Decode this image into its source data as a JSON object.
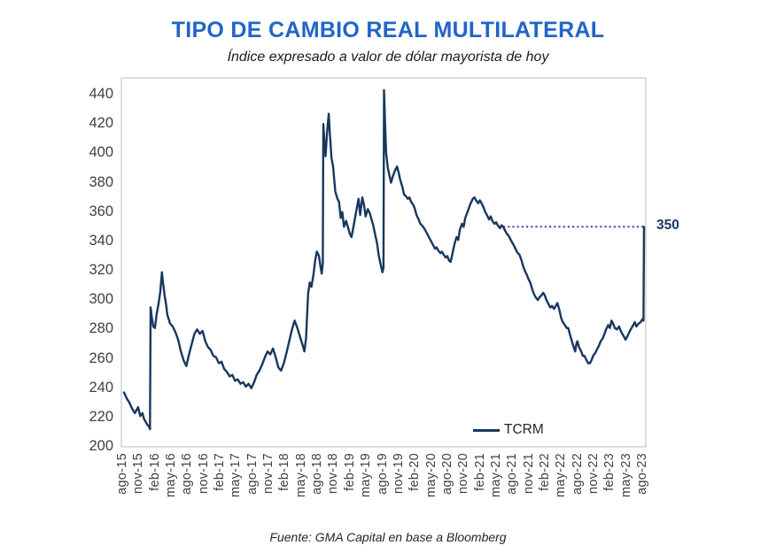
{
  "header": {
    "title": "TIPO DE CAMBIO REAL MULTILATERAL",
    "subtitle": "Índice expresado a valor de dólar mayorista de hoy"
  },
  "footer": {
    "source": "Fuente: GMA Capital en base a Bloomberg"
  },
  "colors": {
    "title": "#2065C9",
    "series_line": "#17375E",
    "reference_dotted": "#7030A0",
    "annotation_text": "#17375E",
    "axis_text": "#404040",
    "plot_border": "#C9C9C9",
    "background": "#FFFFFF"
  },
  "chart_data": {
    "type": "line",
    "title": "TIPO DE CAMBIO REAL MULTILATERAL",
    "subtitle": "Índice expresado a valor de dólar mayorista de hoy",
    "xlabel": "",
    "ylabel": "",
    "ylim": [
      200,
      450
    ],
    "y_ticks": [
      200,
      220,
      240,
      260,
      280,
      300,
      320,
      340,
      360,
      380,
      400,
      420,
      440
    ],
    "x_tick_labels": [
      "ago-15",
      "nov-15",
      "feb-16",
      "may-16",
      "ago-16",
      "nov-16",
      "feb-17",
      "may-17",
      "ago-17",
      "nov-17",
      "feb-18",
      "may-18",
      "ago-18",
      "nov-18",
      "feb-19",
      "may-19",
      "ago-19",
      "nov-19",
      "feb-20",
      "may-20",
      "ago-20",
      "nov-20",
      "feb-21",
      "may-21",
      "ago-21",
      "nov-21",
      "feb-22",
      "may-22",
      "ago-22",
      "nov-22",
      "feb-23",
      "may-23",
      "ago-23"
    ],
    "x_months_per_tick": 3,
    "x_range_months": [
      0,
      96
    ],
    "grid": false,
    "legend_position": "inside-bottom-center",
    "annotation": {
      "label": "350",
      "value": 350,
      "line_style": "dotted",
      "start_month": 70,
      "end_month": 96.3
    },
    "series": [
      {
        "name": "TCRM",
        "x_unit": "months_since_ago-15",
        "points": [
          [
            0,
            237
          ],
          [
            0.5,
            233
          ],
          [
            1,
            230
          ],
          [
            1.5,
            226
          ],
          [
            2,
            223
          ],
          [
            2.3,
            225
          ],
          [
            2.6,
            227
          ],
          [
            3,
            221
          ],
          [
            3.4,
            223
          ],
          [
            3.7,
            219
          ],
          [
            4,
            217
          ],
          [
            4.3,
            215
          ],
          [
            4.6,
            214
          ],
          [
            4.8,
            212
          ],
          [
            4.9,
            295
          ],
          [
            5.1,
            289
          ],
          [
            5.4,
            282
          ],
          [
            5.7,
            281
          ],
          [
            6,
            290
          ],
          [
            6.4,
            298
          ],
          [
            6.7,
            306
          ],
          [
            7,
            319
          ],
          [
            7.2,
            312
          ],
          [
            7.5,
            303
          ],
          [
            7.8,
            296
          ],
          [
            8,
            290
          ],
          [
            8.5,
            284
          ],
          [
            9,
            282
          ],
          [
            9.5,
            278
          ],
          [
            10,
            273
          ],
          [
            10.5,
            265
          ],
          [
            11,
            259
          ],
          [
            11.5,
            255
          ],
          [
            12,
            263
          ],
          [
            12.5,
            270
          ],
          [
            13,
            277
          ],
          [
            13.5,
            280
          ],
          [
            14,
            277
          ],
          [
            14.5,
            279
          ],
          [
            15,
            272
          ],
          [
            15.5,
            268
          ],
          [
            16,
            266
          ],
          [
            16.5,
            262
          ],
          [
            17,
            261
          ],
          [
            17.5,
            257
          ],
          [
            18,
            258
          ],
          [
            18.5,
            253
          ],
          [
            19,
            251
          ],
          [
            19.5,
            248
          ],
          [
            20,
            249
          ],
          [
            20.5,
            245
          ],
          [
            21,
            246
          ],
          [
            21.5,
            243
          ],
          [
            22,
            244
          ],
          [
            22.5,
            241
          ],
          [
            23,
            243
          ],
          [
            23.5,
            240
          ],
          [
            24,
            244
          ],
          [
            24.5,
            249
          ],
          [
            25,
            252
          ],
          [
            25.5,
            256
          ],
          [
            26,
            261
          ],
          [
            26.5,
            265
          ],
          [
            27,
            263
          ],
          [
            27.5,
            267
          ],
          [
            28,
            261
          ],
          [
            28.5,
            254
          ],
          [
            29,
            252
          ],
          [
            29.5,
            257
          ],
          [
            30,
            264
          ],
          [
            30.5,
            272
          ],
          [
            31,
            280
          ],
          [
            31.5,
            286
          ],
          [
            32,
            281
          ],
          [
            32.5,
            275
          ],
          [
            33,
            269
          ],
          [
            33.3,
            265
          ],
          [
            33.6,
            274
          ],
          [
            33.8,
            290
          ],
          [
            34,
            305
          ],
          [
            34.3,
            312
          ],
          [
            34.6,
            309
          ],
          [
            35,
            318
          ],
          [
            35.3,
            327
          ],
          [
            35.6,
            333
          ],
          [
            36,
            330
          ],
          [
            36.3,
            322
          ],
          [
            36.5,
            318
          ],
          [
            36.7,
            325
          ],
          [
            36.8,
            420
          ],
          [
            37,
            408
          ],
          [
            37.2,
            398
          ],
          [
            37.5,
            415
          ],
          [
            37.8,
            427
          ],
          [
            38,
            413
          ],
          [
            38.3,
            397
          ],
          [
            38.6,
            391
          ],
          [
            39,
            374
          ],
          [
            39.4,
            369
          ],
          [
            39.7,
            367
          ],
          [
            40,
            356
          ],
          [
            40.3,
            360
          ],
          [
            40.6,
            350
          ],
          [
            41,
            354
          ],
          [
            41.4,
            349
          ],
          [
            41.7,
            345
          ],
          [
            42,
            343
          ],
          [
            42.4,
            351
          ],
          [
            42.7,
            357
          ],
          [
            43,
            363
          ],
          [
            43.3,
            369
          ],
          [
            43.6,
            358
          ],
          [
            44,
            370
          ],
          [
            44.3,
            365
          ],
          [
            44.6,
            357
          ],
          [
            45,
            362
          ],
          [
            45.4,
            359
          ],
          [
            45.7,
            355
          ],
          [
            46,
            351
          ],
          [
            46.4,
            344
          ],
          [
            46.7,
            339
          ],
          [
            47,
            331
          ],
          [
            47.4,
            324
          ],
          [
            47.7,
            319
          ],
          [
            47.9,
            322
          ],
          [
            48,
            443
          ],
          [
            48.2,
            420
          ],
          [
            48.4,
            400
          ],
          [
            48.7,
            390
          ],
          [
            49,
            385
          ],
          [
            49.3,
            380
          ],
          [
            49.6,
            384
          ],
          [
            50,
            388
          ],
          [
            50.4,
            391
          ],
          [
            50.7,
            387
          ],
          [
            51,
            382
          ],
          [
            51.4,
            377
          ],
          [
            51.7,
            372
          ],
          [
            52,
            371
          ],
          [
            52.4,
            369
          ],
          [
            52.7,
            370
          ],
          [
            53,
            367
          ],
          [
            53.4,
            365
          ],
          [
            53.7,
            362
          ],
          [
            54,
            358
          ],
          [
            54.4,
            355
          ],
          [
            54.7,
            352
          ],
          [
            55,
            351
          ],
          [
            55.4,
            349
          ],
          [
            55.7,
            347
          ],
          [
            56,
            345
          ],
          [
            56.4,
            342
          ],
          [
            56.7,
            340
          ],
          [
            57,
            338
          ],
          [
            57.4,
            335
          ],
          [
            57.7,
            336
          ],
          [
            58,
            334
          ],
          [
            58.4,
            332
          ],
          [
            58.7,
            333
          ],
          [
            59,
            331
          ],
          [
            59.4,
            329
          ],
          [
            59.7,
            330
          ],
          [
            60,
            327
          ],
          [
            60.3,
            326
          ],
          [
            60.6,
            331
          ],
          [
            61,
            338
          ],
          [
            61.4,
            343
          ],
          [
            61.7,
            341
          ],
          [
            62,
            348
          ],
          [
            62.4,
            352
          ],
          [
            62.7,
            350
          ],
          [
            63,
            356
          ],
          [
            63.4,
            360
          ],
          [
            63.7,
            363
          ],
          [
            64,
            366
          ],
          [
            64.4,
            369
          ],
          [
            64.7,
            370
          ],
          [
            65,
            368
          ],
          [
            65.4,
            366
          ],
          [
            65.7,
            368
          ],
          [
            66,
            366
          ],
          [
            66.4,
            363
          ],
          [
            66.7,
            360
          ],
          [
            67,
            358
          ],
          [
            67.4,
            355
          ],
          [
            67.7,
            357
          ],
          [
            68,
            354
          ],
          [
            68.4,
            352
          ],
          [
            68.7,
            353
          ],
          [
            69,
            351
          ],
          [
            69.4,
            349
          ],
          [
            69.7,
            351
          ],
          [
            70,
            350
          ],
          [
            70.4,
            347
          ],
          [
            70.7,
            345
          ],
          [
            71,
            344
          ],
          [
            71.4,
            341
          ],
          [
            71.7,
            339
          ],
          [
            72,
            337
          ],
          [
            72.4,
            334
          ],
          [
            72.7,
            332
          ],
          [
            73,
            331
          ],
          [
            73.4,
            327
          ],
          [
            73.7,
            323
          ],
          [
            74,
            320
          ],
          [
            74.4,
            317
          ],
          [
            74.7,
            314
          ],
          [
            75,
            312
          ],
          [
            75.4,
            307
          ],
          [
            75.7,
            304
          ],
          [
            76,
            302
          ],
          [
            76.4,
            300
          ],
          [
            76.7,
            302
          ],
          [
            77,
            303
          ],
          [
            77.4,
            305
          ],
          [
            77.7,
            303
          ],
          [
            78,
            300
          ],
          [
            78.4,
            297
          ],
          [
            78.7,
            295
          ],
          [
            79,
            296
          ],
          [
            79.4,
            294
          ],
          [
            79.7,
            296
          ],
          [
            80,
            298
          ],
          [
            80.4,
            293
          ],
          [
            80.7,
            288
          ],
          [
            81,
            285
          ],
          [
            81.4,
            283
          ],
          [
            81.7,
            281
          ],
          [
            82,
            281
          ],
          [
            82.3,
            277
          ],
          [
            82.6,
            273
          ],
          [
            83,
            268
          ],
          [
            83.3,
            265
          ],
          [
            83.5,
            270
          ],
          [
            83.7,
            272
          ],
          [
            84,
            268
          ],
          [
            84.4,
            265
          ],
          [
            84.7,
            262
          ],
          [
            85,
            262
          ],
          [
            85.4,
            259
          ],
          [
            85.7,
            257
          ],
          [
            86,
            257
          ],
          [
            86.3,
            259
          ],
          [
            86.6,
            262
          ],
          [
            87,
            264
          ],
          [
            87.4,
            267
          ],
          [
            87.7,
            269
          ],
          [
            88,
            272
          ],
          [
            88.4,
            274
          ],
          [
            88.7,
            277
          ],
          [
            89,
            280
          ],
          [
            89.4,
            283
          ],
          [
            89.7,
            281
          ],
          [
            90,
            286
          ],
          [
            90.3,
            284
          ],
          [
            90.6,
            281
          ],
          [
            91,
            280
          ],
          [
            91.4,
            282
          ],
          [
            91.7,
            279
          ],
          [
            92,
            277
          ],
          [
            92.3,
            275
          ],
          [
            92.6,
            273
          ],
          [
            93,
            276
          ],
          [
            93.4,
            279
          ],
          [
            93.7,
            281
          ],
          [
            94,
            283
          ],
          [
            94.3,
            285
          ],
          [
            94.6,
            282
          ],
          [
            95,
            284
          ],
          [
            95.4,
            285
          ],
          [
            95.7,
            287
          ],
          [
            95.9,
            286
          ],
          [
            96,
            350
          ]
        ]
      }
    ]
  }
}
